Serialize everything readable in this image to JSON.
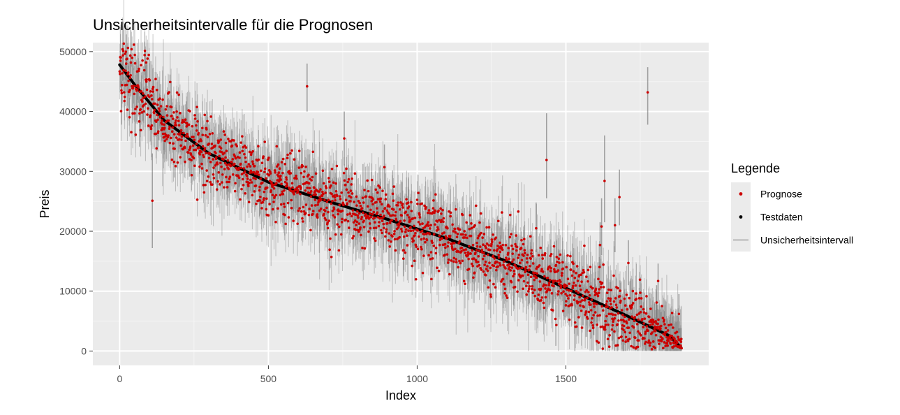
{
  "chart_data": {
    "type": "scatter",
    "title": "Unsicherheitsintervalle für die Prognosen",
    "xlabel": "Index",
    "ylabel": "Preis",
    "xlim": [
      -90,
      1980
    ],
    "ylim": [
      -2400,
      51500
    ],
    "x_ticks": [
      0,
      500,
      1000,
      1500
    ],
    "x_tick_labels": [
      "0",
      "500",
      "1000",
      "1500"
    ],
    "y_ticks": [
      0,
      10000,
      20000,
      30000,
      40000,
      50000
    ],
    "y_tick_labels": [
      "0",
      "10000",
      "20000",
      "30000",
      "40000",
      "50000"
    ],
    "grid": true,
    "n_points": 1890,
    "legend": {
      "title": "Legende",
      "placement": "right",
      "entries": [
        {
          "label": "Prognose",
          "color": "#cc0000",
          "symbol": "point"
        },
        {
          "label": "Testdaten",
          "color": "#000000",
          "symbol": "point"
        },
        {
          "label": "Unsicherheitsintervall",
          "color": "#a0a0a0",
          "symbol": "line"
        }
      ]
    },
    "test_curve": {
      "description_points": [
        [
          0,
          47800
        ],
        [
          50,
          44500
        ],
        [
          150,
          38500
        ],
        [
          300,
          33000
        ],
        [
          500,
          28200
        ],
        [
          700,
          25000
        ],
        [
          900,
          22000
        ],
        [
          1100,
          18800
        ],
        [
          1300,
          15000
        ],
        [
          1500,
          10500
        ],
        [
          1700,
          6000
        ],
        [
          1850,
          2500
        ],
        [
          1890,
          400
        ]
      ]
    },
    "outliers": [
      {
        "x": 630,
        "y": 44200,
        "low": 40000,
        "high": 48000
      },
      {
        "x": 755,
        "y": 35500,
        "low": 31000,
        "high": 40000
      },
      {
        "x": 890,
        "y": 30700,
        "low": 27000,
        "high": 34500
      },
      {
        "x": 1435,
        "y": 31900,
        "low": 25500,
        "high": 39700
      },
      {
        "x": 1400,
        "y": 20500,
        "low": 16500,
        "high": 24800
      },
      {
        "x": 1630,
        "y": 28400,
        "low": 21500,
        "high": 36000
      },
      {
        "x": 1620,
        "y": 20800,
        "low": 16000,
        "high": 25500
      },
      {
        "x": 1615,
        "y": 17700,
        "low": 14000,
        "high": 21500
      },
      {
        "x": 1665,
        "y": 21000,
        "low": 16500,
        "high": 25500
      },
      {
        "x": 1680,
        "y": 25700,
        "low": 21000,
        "high": 30300
      },
      {
        "x": 1710,
        "y": 14700,
        "low": 11000,
        "high": 18500
      },
      {
        "x": 1775,
        "y": 43200,
        "low": 37800,
        "high": 47400
      },
      {
        "x": 1810,
        "y": 11700,
        "low": 8000,
        "high": 14600
      },
      {
        "x": 1805,
        "y": 8100,
        "low": 5000,
        "high": 11000
      },
      {
        "x": 110,
        "y": 25100,
        "low": 17200,
        "high": 33000
      },
      {
        "x": 1880,
        "y": 6200,
        "low": 3000,
        "high": 9500
      }
    ],
    "colors": {
      "panel": "#ebebeb",
      "grid_major": "#ffffff",
      "grid_minor": "#f5f5f5",
      "prediction": "#cc0000",
      "test": "#000000",
      "interval": "#555555"
    }
  }
}
